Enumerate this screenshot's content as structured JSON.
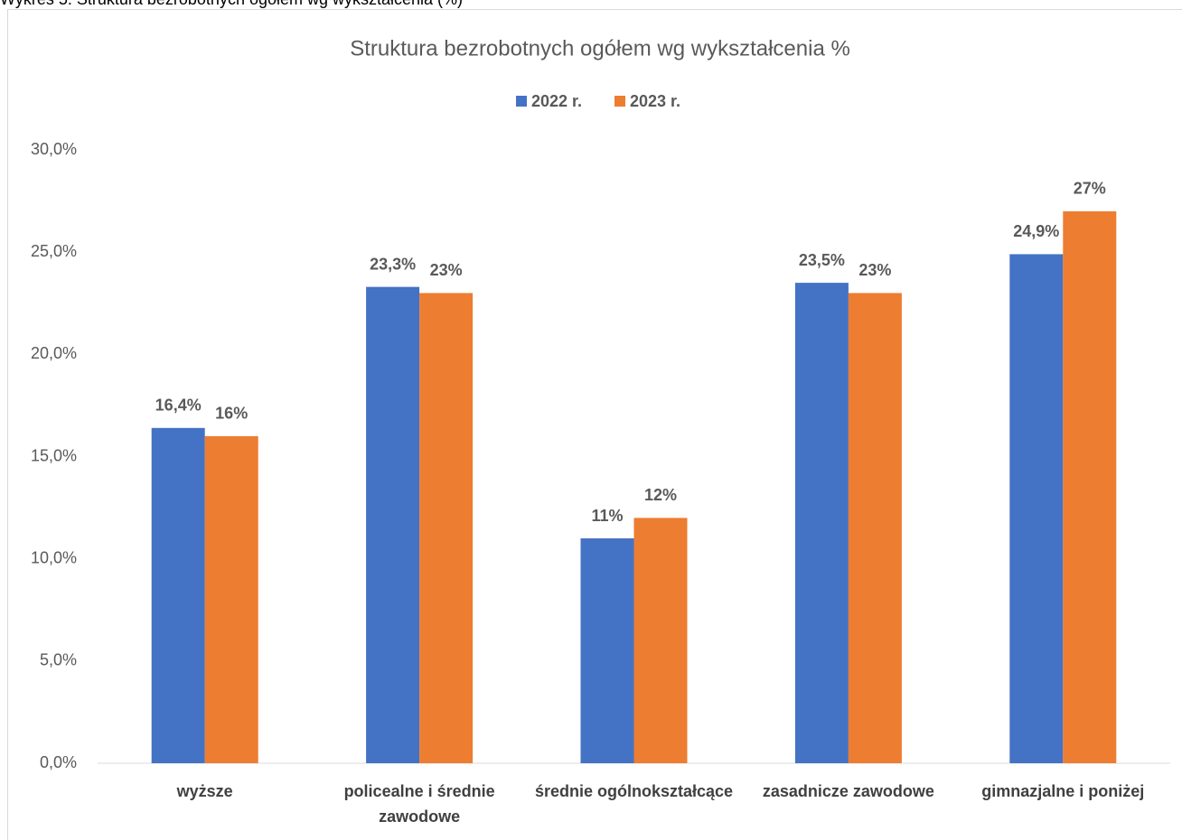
{
  "caption": "Wykres 5. Struktura bezrobotnych ogółem wg wykształcenia (%)",
  "chart_data": {
    "type": "bar",
    "title": "Struktura bezrobotnych ogółem wg wykształcenia %",
    "categories": [
      "wyższe",
      "policealne i średnie zawodowe",
      "średnie ogólnokształcące",
      "zasadnicze zawodowe",
      "gimnazjalne i poniżej"
    ],
    "series": [
      {
        "name": "2022 r.",
        "color": "#4472c4",
        "values": [
          16.4,
          23.3,
          11,
          23.5,
          24.9
        ],
        "value_labels": [
          "16,4%",
          "23,3%",
          "11%",
          "23,5%",
          "24,9%"
        ]
      },
      {
        "name": "2023 r.",
        "color": "#ed7d31",
        "values": [
          16,
          23,
          12,
          23,
          27
        ],
        "value_labels": [
          "16%",
          "23%",
          "12%",
          "23%",
          "27%"
        ]
      }
    ],
    "ylim": [
      0,
      30
    ],
    "yticks": [
      {
        "value": 0,
        "label": "0,0%"
      },
      {
        "value": 5,
        "label": "5,0%"
      },
      {
        "value": 10,
        "label": "10,0%"
      },
      {
        "value": 15,
        "label": "15,0%"
      },
      {
        "value": 20,
        "label": "20,0%"
      },
      {
        "value": 25,
        "label": "25,0%"
      },
      {
        "value": 30,
        "label": "30,0%"
      }
    ],
    "legend": "top",
    "grid": false
  }
}
